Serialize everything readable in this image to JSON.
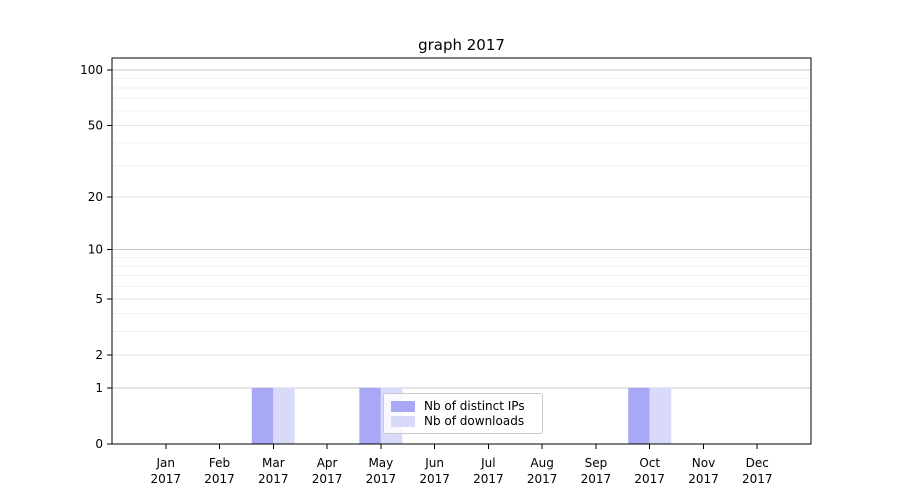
{
  "chart_data": {
    "type": "bar",
    "title": "graph 2017",
    "x": {
      "months": [
        "Jan",
        "Feb",
        "Mar",
        "Apr",
        "May",
        "Jun",
        "Jul",
        "Aug",
        "Sep",
        "Oct",
        "Nov",
        "Dec"
      ],
      "year": "2017"
    },
    "series": [
      {
        "name": "Nb of distinct IPs",
        "color": "#a8a8f4",
        "values": [
          0,
          0,
          1,
          0,
          1,
          0,
          0,
          0,
          0,
          1,
          0,
          0
        ]
      },
      {
        "name": "Nb of downloads",
        "color": "#d9d9fa",
        "values": [
          0,
          0,
          1,
          0,
          1,
          0,
          0,
          0,
          0,
          1,
          0,
          0
        ]
      }
    ],
    "yaxis": {
      "scale": "log1p",
      "max": 116,
      "ticks": [
        0,
        1,
        2,
        5,
        10,
        20,
        50,
        100
      ],
      "minor_gridlines": [
        3,
        4,
        6,
        7,
        8,
        9,
        30,
        40,
        60,
        70,
        80,
        90
      ]
    },
    "grid": "horizontal-only",
    "legend_position": "inside-lower-center",
    "colors": {
      "background": "#ffffff",
      "axis": "#000000",
      "grid_major": "#c8c8c8",
      "grid_mid": "#e4e4e4",
      "grid_minor": "#f1f1f1",
      "legend_border": "#cbcbcb"
    }
  }
}
